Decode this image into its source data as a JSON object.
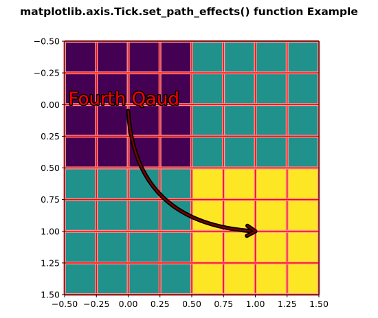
{
  "chart_data": {
    "type": "heatmap",
    "title": "matplotlib.axis.Tick.set_path_effects() function Example",
    "xlabel": "",
    "ylabel": "",
    "xlim": [
      -0.5,
      1.5
    ],
    "ylim": [
      1.5,
      -0.5
    ],
    "x_inverted": false,
    "y_inverted": true,
    "xticks": [
      "−0.50",
      "−0.25",
      "0.00",
      "0.25",
      "0.50",
      "0.75",
      "1.00",
      "1.25",
      "1.50"
    ],
    "yticks": [
      "−0.50",
      "−0.25",
      "0.00",
      "0.25",
      "0.50",
      "0.75",
      "1.00",
      "1.25",
      "1.50"
    ],
    "xtick_values": [
      -0.5,
      -0.25,
      0,
      0.25,
      0.5,
      0.75,
      1.0,
      1.25,
      1.5
    ],
    "ytick_values": [
      -0.5,
      -0.25,
      0,
      0.25,
      0.5,
      0.75,
      1.0,
      1.25,
      1.5
    ],
    "grid": true,
    "grid_color": "#ff0000",
    "colormap": "viridis",
    "colors": {
      "low": "#440154",
      "mid": "#21918c",
      "high": "#fde725"
    },
    "matrix": [
      [
        0,
        1
      ],
      [
        1,
        2
      ]
    ],
    "annotation": {
      "text": "Fourth Qaud",
      "text_xy": [
        -0.47,
        0.0
      ],
      "arrow_from": [
        0.0,
        0.05
      ],
      "arrow_to": [
        1.0,
        1.0
      ],
      "text_color": "#ff0000",
      "outline_color": "#000000"
    }
  }
}
